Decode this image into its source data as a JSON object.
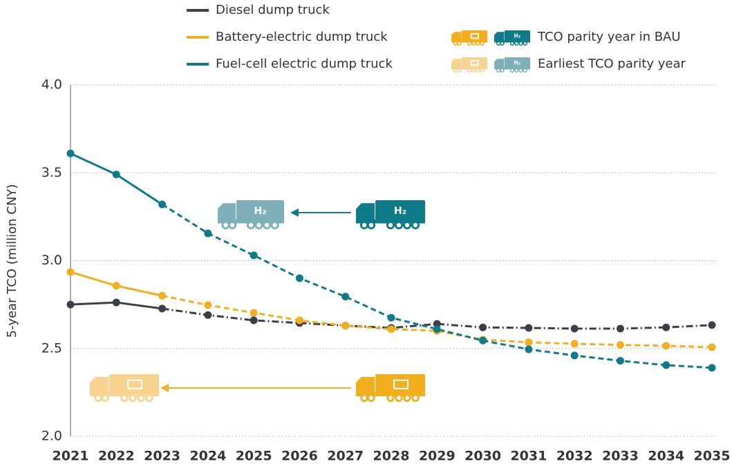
{
  "chart_data": {
    "type": "line",
    "y_label": "5-year TCO (million CNY)",
    "categories": [
      "2021",
      "2022",
      "2023",
      "2024",
      "2025",
      "2026",
      "2027",
      "2028",
      "2029",
      "2030",
      "2031",
      "2032",
      "2033",
      "2034",
      "2035"
    ],
    "series": [
      {
        "name": "Diesel dump truck",
        "color": "#3a3f4a",
        "values": [
          2.75,
          2.762,
          2.727,
          2.69,
          2.66,
          2.645,
          2.63,
          2.617,
          2.64,
          2.62,
          2.617,
          2.613,
          2.613,
          2.62,
          2.633
        ]
      },
      {
        "name": "Battery-electric dump truck",
        "color": "#f2ae1c",
        "values": [
          2.935,
          2.857,
          2.8,
          2.747,
          2.703,
          2.66,
          2.63,
          2.61,
          2.6,
          2.55,
          2.535,
          2.527,
          2.52,
          2.515,
          2.507
        ]
      },
      {
        "name": "Fuel-cell electric dump truck",
        "color": "#0e7a8a",
        "values": [
          3.61,
          3.49,
          3.32,
          3.155,
          3.03,
          2.9,
          2.795,
          2.675,
          2.61,
          2.545,
          2.495,
          2.46,
          2.43,
          2.405,
          2.39
        ]
      }
    ],
    "ylim": [
      2,
      4
    ],
    "yticks": [
      {
        "value": 2,
        "label": "2.0"
      },
      {
        "value": 2.5,
        "label": "2.5"
      },
      {
        "value": 3,
        "label": "3.0"
      },
      {
        "value": 3.5,
        "label": "3.5"
      },
      {
        "value": 4,
        "label": "4.0"
      }
    ],
    "grid": true,
    "icon_legend": [
      "TCO parity year in BAU",
      "Earliest TCO parity year"
    ],
    "h2_label": "H₂"
  }
}
